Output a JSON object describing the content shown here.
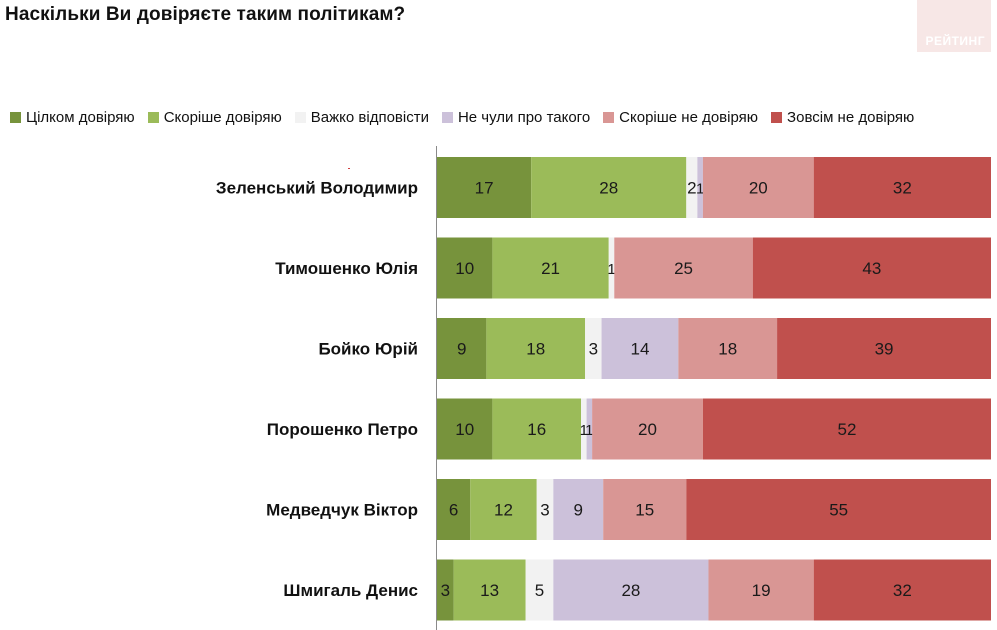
{
  "header": {
    "title": "Наскільки Ви довіряєте таким політикам?",
    "brand": "РЕЙТИНГ"
  },
  "colors": {
    "brand_bg": "#f7e7e6",
    "value_text": "#1a1a1a"
  },
  "chart_data": {
    "type": "bar",
    "orientation": "horizontal",
    "stacked": true,
    "title": "Наскільки Ви довіряєте таким політикам?",
    "xlabel": "",
    "ylabel": "",
    "legend_position": "top",
    "grid": false,
    "categories": [
      "Зеленський Володимир",
      "Тимошенко Юлія",
      "Бойко Юрій",
      "Порошенко Петро",
      "Медведчук Віктор",
      "Шмигаль Денис"
    ],
    "series": [
      {
        "name": "Цілком довіряю",
        "color": "#77933c",
        "values": [
          17,
          10,
          9,
          10,
          6,
          3
        ]
      },
      {
        "name": "Скоріше довіряю",
        "color": "#9bbb59",
        "values": [
          28,
          21,
          18,
          16,
          12,
          13
        ]
      },
      {
        "name": "Важко відповісти",
        "color": "#f2f2f2",
        "values": [
          2,
          1,
          3,
          1,
          3,
          5
        ]
      },
      {
        "name": "Не чули про такого",
        "color": "#ccc1da",
        "values": [
          1,
          0,
          14,
          1,
          9,
          28
        ]
      },
      {
        "name": "Скоріше не довіряю",
        "color": "#d99694",
        "values": [
          20,
          25,
          18,
          20,
          15,
          19
        ]
      },
      {
        "name": "Зовсім не довіряю",
        "color": "#c0504d",
        "values": [
          32,
          43,
          39,
          52,
          55,
          32
        ]
      }
    ],
    "labels": [
      [
        "17",
        "28",
        "2",
        "1",
        "20",
        "32"
      ],
      [
        "10",
        "21",
        "1",
        "",
        "25",
        "43"
      ],
      [
        "9",
        "18",
        "3",
        "14",
        "18",
        "39"
      ],
      [
        "10",
        "16",
        "1",
        "1",
        "20",
        "52"
      ],
      [
        "6",
        "12",
        "3",
        "9",
        "15",
        "55"
      ],
      [
        "3",
        "13",
        "5",
        "28",
        "19",
        "32"
      ]
    ]
  }
}
